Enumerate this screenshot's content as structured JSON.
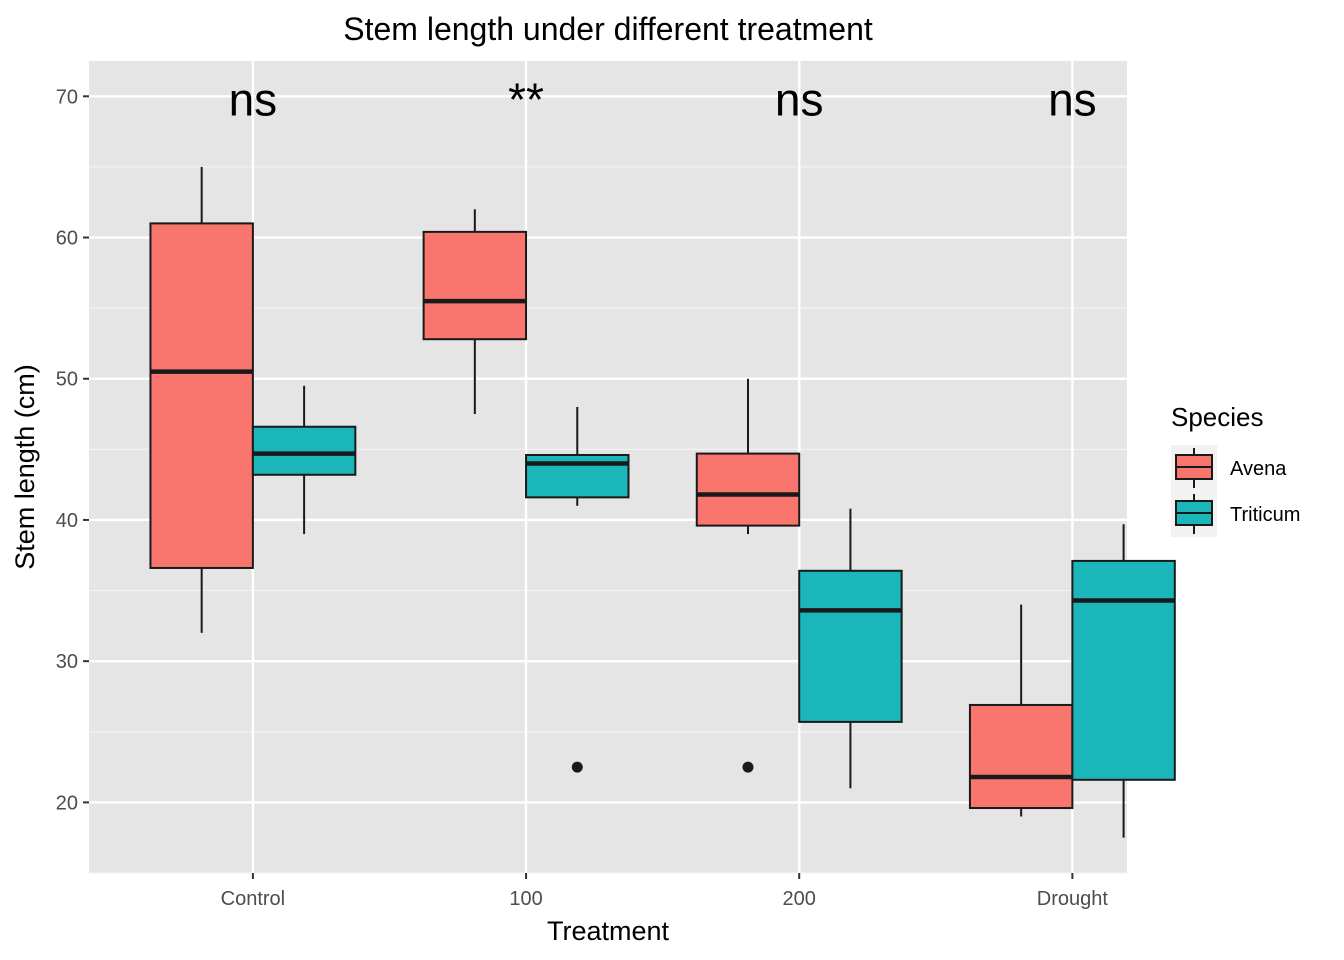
{
  "chart_data": {
    "type": "boxplot",
    "title": "Stem length under different treatment",
    "xlabel": "Treatment",
    "ylabel": "Stem length (cm)",
    "categories": [
      "Control",
      "100",
      "200",
      "Drought"
    ],
    "ylim": [
      15,
      72.5
    ],
    "yticks": [
      20,
      30,
      40,
      50,
      60,
      70
    ],
    "grid": true,
    "legend": {
      "title": "Species",
      "position": "right"
    },
    "annotations": [
      "ns",
      "**",
      "ns",
      "ns"
    ],
    "series": [
      {
        "name": "Avena",
        "color": "#F8766D",
        "boxes": [
          {
            "min": 32,
            "q1": 36.6,
            "median": 50.5,
            "q3": 61,
            "max": 65,
            "outliers": []
          },
          {
            "min": 47.5,
            "q1": 52.8,
            "median": 55.5,
            "q3": 60.4,
            "max": 62,
            "outliers": []
          },
          {
            "min": 39,
            "q1": 39.6,
            "median": 41.8,
            "q3": 44.7,
            "max": 50,
            "outliers": [
              22.5
            ]
          },
          {
            "min": 19,
            "q1": 19.6,
            "median": 21.8,
            "q3": 26.9,
            "max": 34,
            "outliers": []
          }
        ]
      },
      {
        "name": "Triticum",
        "color": "#1BB6B9",
        "boxes": [
          {
            "min": 39,
            "q1": 43.2,
            "median": 44.7,
            "q3": 46.6,
            "max": 49.5,
            "outliers": []
          },
          {
            "min": 41,
            "q1": 41.6,
            "median": 44,
            "q3": 44.6,
            "max": 48,
            "outliers": [
              22.5
            ]
          },
          {
            "min": 21,
            "q1": 25.7,
            "median": 33.6,
            "q3": 36.4,
            "max": 40.8,
            "outliers": []
          },
          {
            "min": 17.5,
            "q1": 21.6,
            "median": 34.3,
            "q3": 37.1,
            "max": 39.7,
            "outliers": []
          }
        ]
      }
    ]
  }
}
